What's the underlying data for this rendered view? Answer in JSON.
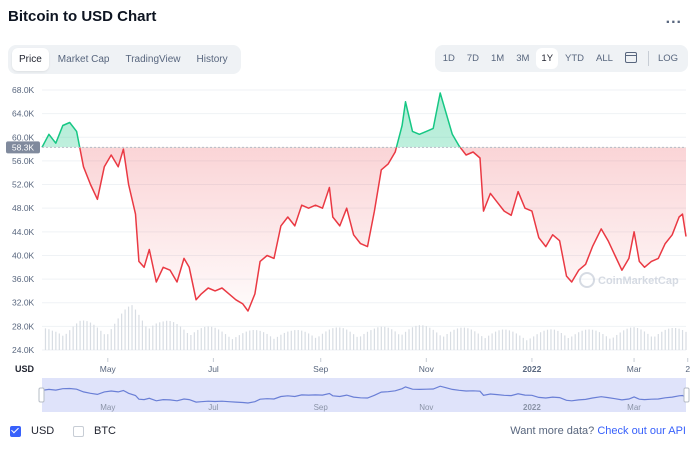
{
  "title": "Bitcoin to USD Chart",
  "more_glyph": "...",
  "tabs": [
    {
      "label": "Price",
      "active": true
    },
    {
      "label": "Market Cap",
      "active": false
    },
    {
      "label": "TradingView",
      "active": false
    },
    {
      "label": "History",
      "active": false
    }
  ],
  "ranges": [
    "1D",
    "7D",
    "1M",
    "3M",
    "1Y",
    "YTD",
    "ALL"
  ],
  "active_range": "1Y",
  "log_label": "LOG",
  "footer": {
    "usd_label": "USD",
    "usd_checked": true,
    "btc_label": "BTC",
    "btc_checked": false,
    "more_text": "Want more data?",
    "link_text": "Check out our API"
  },
  "watermark": "CoinMarketCap",
  "colors": {
    "up": "#16c784",
    "down": "#ea3943",
    "accent": "#3861fb",
    "navigator": "#6a7fd6"
  },
  "chart_data": {
    "type": "line",
    "y_unit_label": "USD",
    "baseline_label": "58.3K",
    "baseline": 58300,
    "ylim": [
      24000,
      68000
    ],
    "y_ticks": [
      24000,
      28000,
      32000,
      36000,
      40000,
      44000,
      48000,
      52000,
      56000,
      60000,
      64000,
      68000
    ],
    "y_tick_labels": [
      "24.0K",
      "28.0K",
      "32.0K",
      "36.0K",
      "40.0K",
      "44.0K",
      "48.0K",
      "52.0K",
      "56.0K",
      "60.0K",
      "64.0K",
      "68.0K"
    ],
    "x_range": [
      "2021-03-24",
      "2022-03-31"
    ],
    "x_ticks": [
      "2021-05-01",
      "2021-07-01",
      "2021-09-01",
      "2021-11-01",
      "2022-01-01",
      "2022-03-01",
      "2022-04-01"
    ],
    "x_tick_labels": [
      "May",
      "Jul",
      "Sep",
      "Nov",
      "2022",
      "Mar",
      "2"
    ],
    "price_series": [
      [
        "2021-03-24",
        58300
      ],
      [
        "2021-03-28",
        60500
      ],
      [
        "2021-04-01",
        59000
      ],
      [
        "2021-04-05",
        62000
      ],
      [
        "2021-04-09",
        62500
      ],
      [
        "2021-04-13",
        61000
      ],
      [
        "2021-04-17",
        55000
      ],
      [
        "2021-04-21",
        52000
      ],
      [
        "2021-04-25",
        49500
      ],
      [
        "2021-04-29",
        55000
      ],
      [
        "2021-05-03",
        57000
      ],
      [
        "2021-05-07",
        55000
      ],
      [
        "2021-05-10",
        58000
      ],
      [
        "2021-05-13",
        52000
      ],
      [
        "2021-05-17",
        47000
      ],
      [
        "2021-05-19",
        39000
      ],
      [
        "2021-05-22",
        38000
      ],
      [
        "2021-05-25",
        41000
      ],
      [
        "2021-05-29",
        35500
      ],
      [
        "2021-06-02",
        38000
      ],
      [
        "2021-06-06",
        37500
      ],
      [
        "2021-06-10",
        35500
      ],
      [
        "2021-06-14",
        39500
      ],
      [
        "2021-06-17",
        38000
      ],
      [
        "2021-06-21",
        32500
      ],
      [
        "2021-06-24",
        33500
      ],
      [
        "2021-06-28",
        34500
      ],
      [
        "2021-07-02",
        34000
      ],
      [
        "2021-07-06",
        34500
      ],
      [
        "2021-07-10",
        33500
      ],
      [
        "2021-07-14",
        32500
      ],
      [
        "2021-07-18",
        31800
      ],
      [
        "2021-07-21",
        30600
      ],
      [
        "2021-07-25",
        33500
      ],
      [
        "2021-07-28",
        39000
      ],
      [
        "2021-08-01",
        40000
      ],
      [
        "2021-08-05",
        39500
      ],
      [
        "2021-08-09",
        45000
      ],
      [
        "2021-08-13",
        46500
      ],
      [
        "2021-08-17",
        45000
      ],
      [
        "2021-08-21",
        48500
      ],
      [
        "2021-08-25",
        48000
      ],
      [
        "2021-08-29",
        48500
      ],
      [
        "2021-09-02",
        48000
      ],
      [
        "2021-09-06",
        51500
      ],
      [
        "2021-09-08",
        46500
      ],
      [
        "2021-09-12",
        45000
      ],
      [
        "2021-09-16",
        48000
      ],
      [
        "2021-09-20",
        43500
      ],
      [
        "2021-09-24",
        42000
      ],
      [
        "2021-09-28",
        41500
      ],
      [
        "2021-10-02",
        47500
      ],
      [
        "2021-10-06",
        54500
      ],
      [
        "2021-10-10",
        55500
      ],
      [
        "2021-10-14",
        57500
      ],
      [
        "2021-10-18",
        62000
      ],
      [
        "2021-10-20",
        66000
      ],
      [
        "2021-10-24",
        61000
      ],
      [
        "2021-10-28",
        60500
      ],
      [
        "2021-11-01",
        61000
      ],
      [
        "2021-11-05",
        61500
      ],
      [
        "2021-11-09",
        67500
      ],
      [
        "2021-11-12",
        64500
      ],
      [
        "2021-11-16",
        60500
      ],
      [
        "2021-11-20",
        58500
      ],
      [
        "2021-11-24",
        57000
      ],
      [
        "2021-11-28",
        57500
      ],
      [
        "2021-12-02",
        56500
      ],
      [
        "2021-12-04",
        47500
      ],
      [
        "2021-12-08",
        50500
      ],
      [
        "2021-12-12",
        49000
      ],
      [
        "2021-12-16",
        47500
      ],
      [
        "2021-12-20",
        46800
      ],
      [
        "2021-12-24",
        50800
      ],
      [
        "2021-12-28",
        48000
      ],
      [
        "2022-01-01",
        47500
      ],
      [
        "2022-01-05",
        43000
      ],
      [
        "2022-01-09",
        41500
      ],
      [
        "2022-01-13",
        43500
      ],
      [
        "2022-01-17",
        42500
      ],
      [
        "2022-01-21",
        36500
      ],
      [
        "2022-01-24",
        35500
      ],
      [
        "2022-01-28",
        37500
      ],
      [
        "2022-02-01",
        38500
      ],
      [
        "2022-02-05",
        41500
      ],
      [
        "2022-02-10",
        44500
      ],
      [
        "2022-02-14",
        42500
      ],
      [
        "2022-02-18",
        40000
      ],
      [
        "2022-02-22",
        37500
      ],
      [
        "2022-02-26",
        39500
      ],
      [
        "2022-03-01",
        44000
      ],
      [
        "2022-03-04",
        39000
      ],
      [
        "2022-03-07",
        38000
      ],
      [
        "2022-03-11",
        39000
      ],
      [
        "2022-03-15",
        39500
      ],
      [
        "2022-03-19",
        42000
      ],
      [
        "2022-03-23",
        43500
      ],
      [
        "2022-03-27",
        46500
      ],
      [
        "2022-03-29",
        47000
      ],
      [
        "2022-03-31",
        43200
      ]
    ],
    "volume_series": [
      [
        "2021-04-01",
        42
      ],
      [
        "2021-04-15",
        55
      ],
      [
        "2021-05-01",
        48
      ],
      [
        "2021-05-15",
        85
      ],
      [
        "2021-06-01",
        55
      ],
      [
        "2021-06-15",
        50
      ],
      [
        "2021-07-01",
        42
      ],
      [
        "2021-07-15",
        35
      ],
      [
        "2021-08-01",
        38
      ],
      [
        "2021-08-15",
        36
      ],
      [
        "2021-09-01",
        40
      ],
      [
        "2021-09-15",
        42
      ],
      [
        "2021-10-01",
        40
      ],
      [
        "2021-10-15",
        48
      ],
      [
        "2021-11-01",
        45
      ],
      [
        "2021-11-15",
        42
      ],
      [
        "2021-12-01",
        40
      ],
      [
        "2021-12-15",
        38
      ],
      [
        "2022-01-01",
        32
      ],
      [
        "2022-01-15",
        40
      ],
      [
        "2022-02-01",
        38
      ],
      [
        "2022-02-15",
        36
      ],
      [
        "2022-03-01",
        42
      ],
      [
        "2022-03-31",
        40
      ]
    ]
  }
}
